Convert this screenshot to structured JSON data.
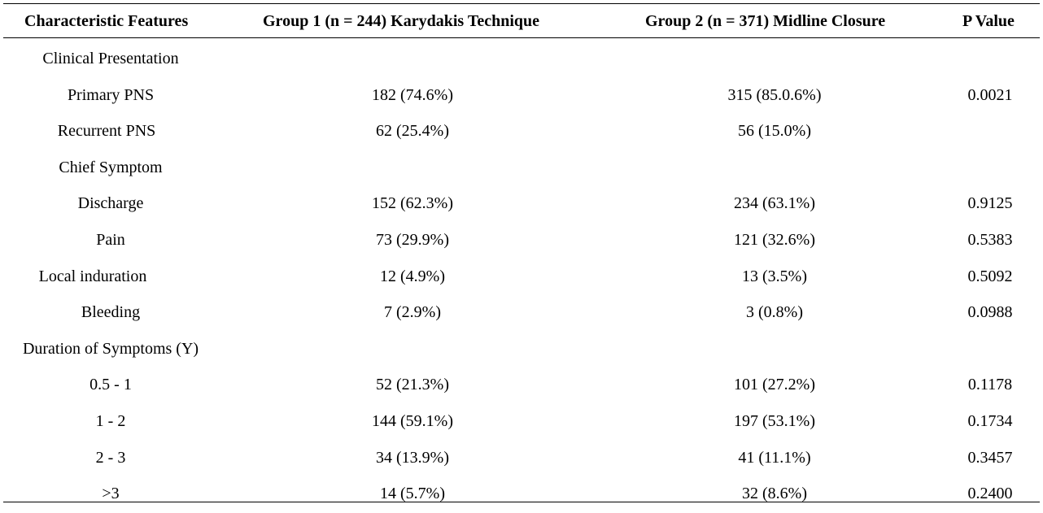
{
  "table": {
    "headers": [
      "Characteristic Features",
      "Group 1 (n = 244) Karydakis Technique",
      "Group 2 (n = 371) Midline Closure",
      "P Value"
    ],
    "rows": [
      {
        "label": "Clinical Presentation",
        "g1": "",
        "g2": "",
        "p": ""
      },
      {
        "label": "Primary PNS",
        "g1": "182 (74.6%)",
        "g2": "315 (85.0.6%)",
        "p": "0.0021"
      },
      {
        "label": "Recurrent PNS",
        "g1": "62 (25.4%)",
        "g2": "56 (15.0%)",
        "p": ""
      },
      {
        "label": "Chief Symptom",
        "g1": "",
        "g2": "",
        "p": ""
      },
      {
        "label": "Discharge",
        "g1": "152 (62.3%)",
        "g2": "234 (63.1%)",
        "p": "0.9125"
      },
      {
        "label": "Pain",
        "g1": "73 (29.9%)",
        "g2": "121 (32.6%)",
        "p": "0.5383"
      },
      {
        "label": "Local induration",
        "g1": "12 (4.9%)",
        "g2": "13 (3.5%)",
        "p": "0.5092"
      },
      {
        "label": "Bleeding",
        "g1": "7 (2.9%)",
        "g2": "3 (0.8%)",
        "p": "0.0988"
      },
      {
        "label": "Duration of Symptoms (Y)",
        "g1": "",
        "g2": "",
        "p": ""
      },
      {
        "label": "0.5 - 1",
        "g1": "52 (21.3%)",
        "g2": "101 (27.2%)",
        "p": "0.1178"
      },
      {
        "label": "1 - 2",
        "g1": "144 (59.1%)",
        "g2": "197 (53.1%)",
        "p": "0.1734"
      },
      {
        "label": "2 - 3",
        "g1": "34 (13.9%)",
        "g2": "41 (11.1%)",
        "p": "0.3457"
      },
      {
        "label": ">3",
        "g1": "14 (5.7%)",
        "g2": "32 (8.6%)",
        "p": "0.2400"
      }
    ]
  }
}
